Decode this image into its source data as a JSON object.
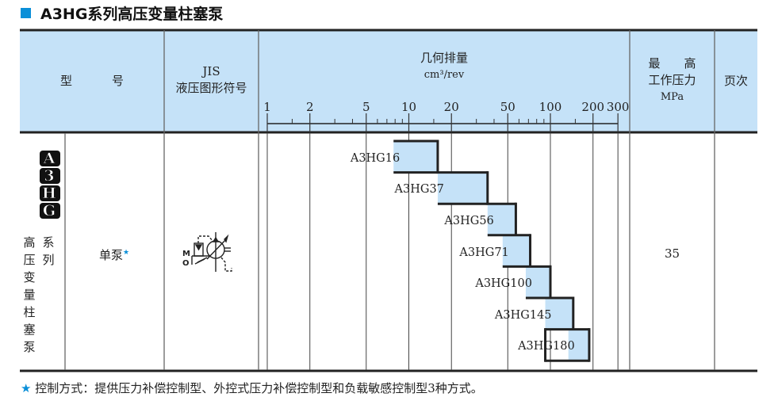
{
  "title": "A3HG系列高压变量柱塞泵",
  "header": {
    "model": [
      "型",
      "号"
    ],
    "jis": [
      "JIS",
      "液压图形符号"
    ],
    "displacement": [
      "几何排量",
      "cm³/rev"
    ],
    "pressure": [
      "最　　高",
      "工作压力",
      "MPa"
    ],
    "page": "页次"
  },
  "series_logo": "A3HG",
  "series_name_col1": [
    "高",
    "压",
    "变",
    "量",
    "柱",
    "塞",
    "泵"
  ],
  "series_name_col2": [
    "系",
    "列"
  ],
  "pump_type": "单泵",
  "star": "★",
  "symbol_labels": [
    "M",
    "O"
  ],
  "max_pressure": "35",
  "page_value": "",
  "footnote": "控制方式：提供压力补偿控制型、外控式压力补偿控制型和负载敏感控制型3种方式。",
  "colors": {
    "accent": "#0a8fd8",
    "header_bg": "#c5e2f8",
    "bar_fill": "#c5e2f8",
    "outline": "#222222"
  },
  "chart_data": {
    "type": "bar",
    "orientation": "horizontal-range",
    "xscale": "log",
    "xlabel": "几何排量 cm³/rev",
    "xlim": [
      1,
      300
    ],
    "tick_labels": [
      "1",
      "2",
      "5",
      "10",
      "20",
      "50",
      "100",
      "200",
      "300"
    ],
    "major_ticks": [
      1,
      2,
      5,
      10,
      20,
      50,
      100,
      200,
      300
    ],
    "minor_ticks": [
      1.5,
      3,
      4,
      6,
      7,
      8,
      9,
      15,
      30,
      40,
      60,
      70,
      80,
      90,
      150
    ],
    "grid": true,
    "categories": [
      "A3HG16",
      "A3HG37",
      "A3HG56",
      "A3HG71",
      "A3HG100",
      "A3HG145",
      "A3HG180"
    ],
    "ranges": [
      [
        7.8,
        16
      ],
      [
        16,
        36
      ],
      [
        36,
        57
      ],
      [
        46,
        72
      ],
      [
        67,
        100
      ],
      [
        92,
        145
      ],
      [
        92,
        188
      ]
    ],
    "fill_from": [
      7.8,
      16,
      36,
      46,
      67,
      92,
      134
    ]
  }
}
